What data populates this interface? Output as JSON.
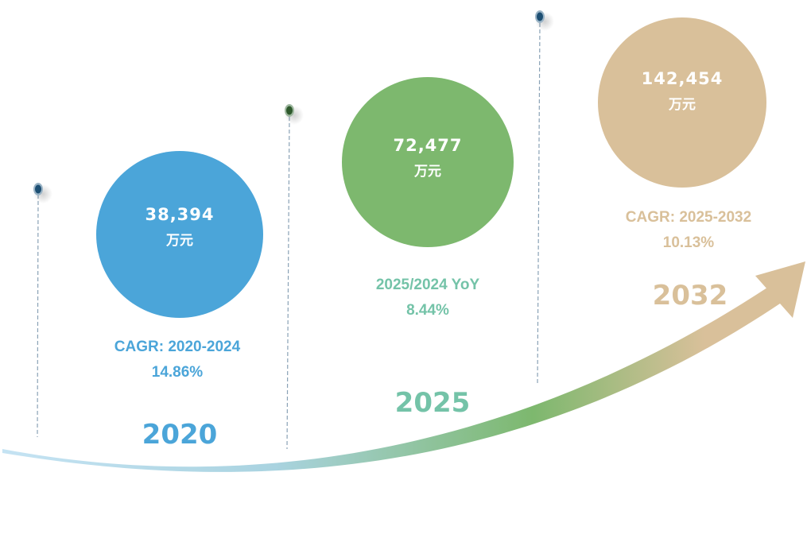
{
  "colors": {
    "blue": "#4ba5d9",
    "green": "#7db86e",
    "tan": "#d9c09a",
    "teal": "#74c3a8",
    "pin": "#1d4f73"
  },
  "milestones": [
    {
      "year": "2020",
      "value": "38,394",
      "unit": "万元",
      "metric": "CAGR: 2020-2024",
      "rate": "14.86%"
    },
    {
      "year": "2025",
      "value": "72,477",
      "unit": "万元",
      "metric": "2025/2024 YoY",
      "rate": "8.44%"
    },
    {
      "year": "2032",
      "value": "142,454",
      "unit": "万元",
      "metric": "CAGR: 2025-2032",
      "rate": "10.13%"
    }
  ]
}
